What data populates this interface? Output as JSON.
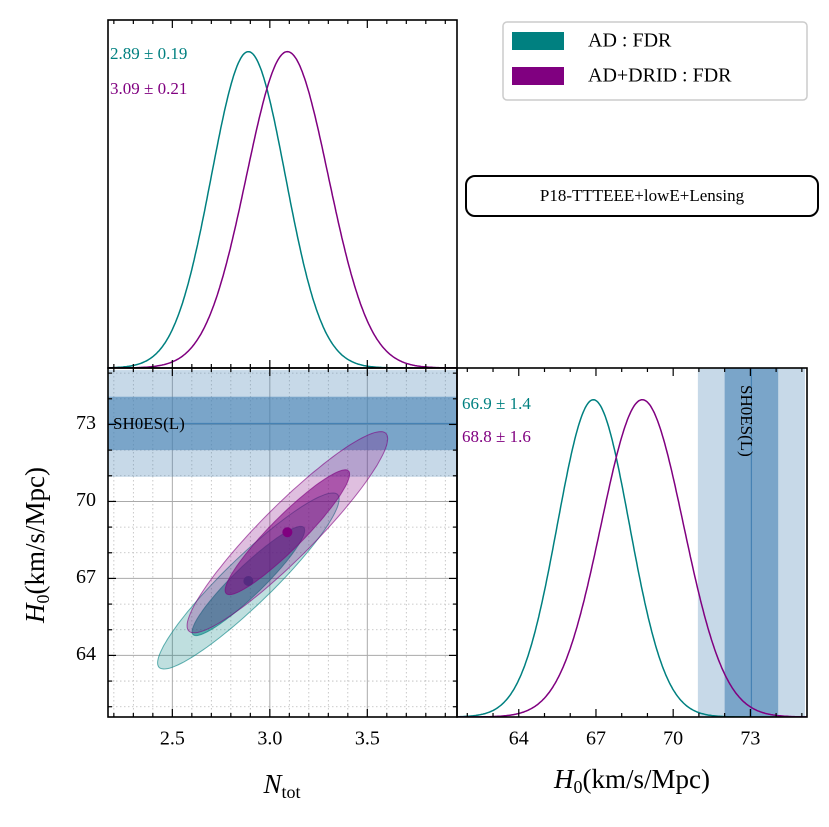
{
  "chart_data": {
    "type": "corner",
    "legend": "upper right",
    "annotation": "P18-TTTEEE+lowE+Lensing",
    "xlabel": {
      "main": "N",
      "sub": "tot"
    },
    "ylabel": {
      "main": "H",
      "sub": "0",
      "unit": "(km/s/Mpc)"
    },
    "nlim": [
      2.17,
      3.96
    ],
    "nticks": [
      2.5,
      {
        "value": 3,
        "label": "3.0"
      },
      3.5
    ],
    "nminor": [
      2.2,
      2.3,
      2.4,
      2.6,
      2.7,
      2.8,
      2.9,
      3.1,
      3.2,
      3.3,
      3.4,
      3.6,
      3.7,
      3.8,
      3.9
    ],
    "hlim": [
      61.6,
      75.2
    ],
    "hticks": [
      64,
      67,
      70,
      73
    ],
    "hminor": [
      62,
      63,
      65,
      66,
      68,
      69,
      71,
      72,
      74,
      75
    ],
    "density_lim": [
      0,
      1.1
    ],
    "grid": true,
    "series": [
      {
        "name": "AD : FDR",
        "color": "#008080",
        "correlation": 0.93,
        "ntot": {
          "mean": 2.89,
          "sigma": 0.19,
          "label": "2.89 ± 0.19"
        },
        "h0": {
          "mean": 66.9,
          "sigma": 1.4,
          "label": "66.9 ± 1.4"
        }
      },
      {
        "name": "AD+DRID : FDR",
        "color": "#800080",
        "correlation": 0.93,
        "ntot": {
          "mean": 3.09,
          "sigma": 0.21,
          "label": "3.09 ± 0.21"
        },
        "h0": {
          "mean": 68.8,
          "sigma": 1.6,
          "label": "68.8 ± 1.6"
        }
      }
    ],
    "reference": {
      "name": "SH0ES(L)",
      "mean": 73.04,
      "sigma": 1.04,
      "color": "#4682b4"
    }
  }
}
